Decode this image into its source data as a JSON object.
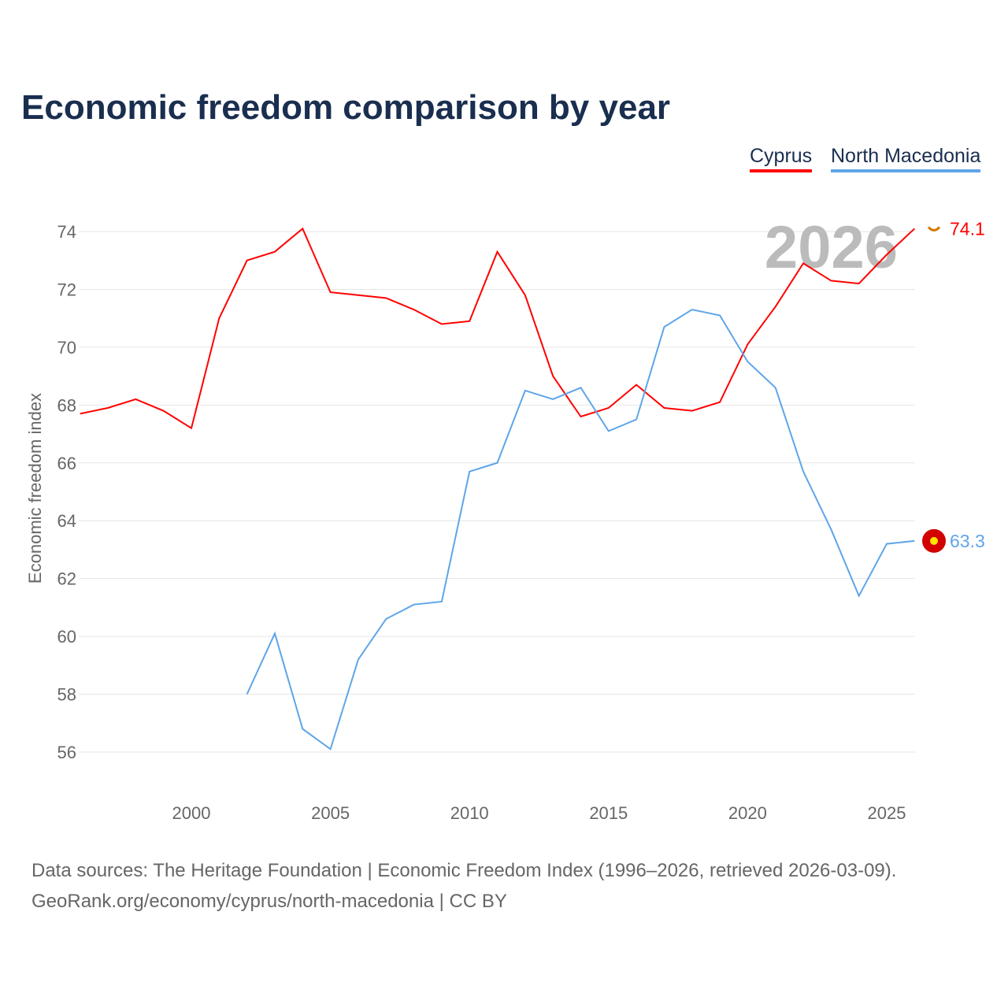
{
  "title": "Economic freedom comparison by year",
  "footer": {
    "line1": "Data sources: The Heritage Foundation | Economic Freedom Index (1996–2026, retrieved 2026-03-09).",
    "line2": "GeoRank.org/economy/cyprus/north-macedonia | CC BY"
  },
  "chart_data": {
    "type": "line",
    "title": "Economic freedom comparison by year",
    "ylabel": "Economic freedom index",
    "xlabel": "",
    "xlim": [
      1996,
      2026
    ],
    "ylim": [
      55,
      75
    ],
    "xticks": [
      2000,
      2005,
      2010,
      2015,
      2020,
      2025
    ],
    "yticks": [
      56,
      58,
      60,
      62,
      64,
      66,
      68,
      70,
      72,
      74
    ],
    "grid": true,
    "legend_placement": "top-right",
    "watermark_year": "2026",
    "series": [
      {
        "name": "Cyprus",
        "color": "#ff0000",
        "end_label": "74.1",
        "flag": "cyprus-flag",
        "x": [
          1996,
          1997,
          1998,
          1999,
          2000,
          2001,
          2002,
          2003,
          2004,
          2005,
          2006,
          2007,
          2008,
          2009,
          2010,
          2011,
          2012,
          2013,
          2014,
          2015,
          2016,
          2017,
          2018,
          2019,
          2020,
          2021,
          2022,
          2023,
          2024,
          2025,
          2026
        ],
        "values": [
          67.7,
          67.9,
          68.2,
          67.8,
          67.2,
          71.0,
          73.0,
          73.3,
          74.1,
          71.9,
          71.8,
          71.7,
          71.3,
          70.8,
          70.9,
          73.3,
          71.8,
          69.0,
          67.6,
          67.9,
          68.7,
          67.9,
          67.8,
          68.1,
          70.1,
          71.4,
          72.9,
          72.3,
          72.2,
          73.2,
          74.1
        ]
      },
      {
        "name": "North Macedonia",
        "color": "#5fa5e8",
        "end_label": "63.3",
        "flag": "north-macedonia-flag",
        "x": [
          2002,
          2003,
          2004,
          2005,
          2006,
          2007,
          2008,
          2009,
          2010,
          2011,
          2012,
          2013,
          2014,
          2015,
          2016,
          2017,
          2018,
          2019,
          2020,
          2021,
          2022,
          2023,
          2024,
          2025,
          2026
        ],
        "values": [
          58.0,
          60.1,
          56.8,
          56.1,
          59.2,
          60.6,
          61.1,
          61.2,
          65.7,
          66.0,
          68.5,
          68.2,
          68.6,
          67.1,
          67.5,
          70.7,
          71.3,
          71.1,
          69.5,
          68.6,
          65.7,
          63.7,
          61.4,
          63.2,
          63.3
        ]
      }
    ]
  }
}
